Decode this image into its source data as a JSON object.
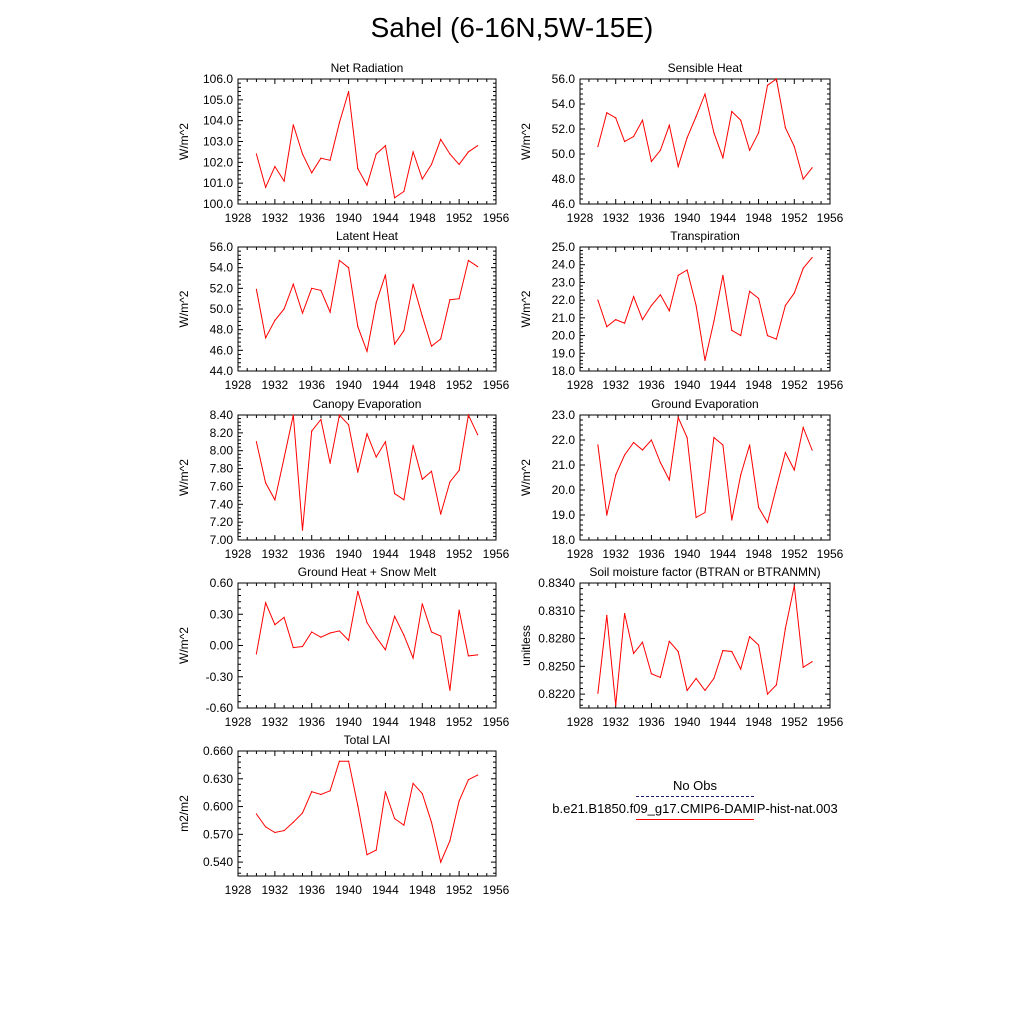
{
  "title": "Sahel (6-16N,5W-15E)",
  "colors": {
    "line": "#ff0000",
    "axis": "#000000",
    "obs_line": "#1a1a6e"
  },
  "legend": [
    {
      "label": "No Obs",
      "style": "dashed",
      "color": "#1a1a6e"
    },
    {
      "label": "b.e21.B1850.f09_g17.CMIP6-DAMIP-hist-nat.003",
      "style": "solid",
      "color": "#ff0000"
    }
  ],
  "chart_data": [
    {
      "type": "line",
      "title": "Net Radiation",
      "xlabel": "",
      "ylabel": "W/m^2",
      "xlim": [
        1928,
        1956
      ],
      "xticks": [
        "1928",
        "1932",
        "1936",
        "1940",
        "1944",
        "1948",
        "1952",
        "1956"
      ],
      "ylim": [
        100.0,
        106.0
      ],
      "yticks": [
        "100.0",
        "101.0",
        "102.0",
        "103.0",
        "104.0",
        "105.0",
        "106.0"
      ],
      "x": [
        1930,
        1931,
        1932,
        1933,
        1934,
        1935,
        1936,
        1937,
        1938,
        1939,
        1940,
        1941,
        1942,
        1943,
        1944,
        1945,
        1946,
        1947,
        1948,
        1949,
        1950,
        1951,
        1952,
        1953,
        1954
      ],
      "y": [
        102.4,
        100.8,
        101.8,
        101.1,
        103.8,
        102.4,
        101.5,
        102.2,
        102.1,
        103.9,
        105.4,
        101.7,
        100.9,
        102.4,
        102.8,
        100.3,
        100.6,
        102.5,
        101.2,
        101.9,
        103.1,
        102.4,
        101.9,
        102.5,
        102.8
      ]
    },
    {
      "type": "line",
      "title": "Sensible Heat",
      "xlabel": "",
      "ylabel": "W/m^2",
      "xlim": [
        1928,
        1956
      ],
      "xticks": [
        "1928",
        "1932",
        "1936",
        "1940",
        "1944",
        "1948",
        "1952",
        "1956"
      ],
      "ylim": [
        46.0,
        56.0
      ],
      "yticks": [
        "46.0",
        "48.0",
        "50.0",
        "52.0",
        "54.0",
        "56.0"
      ],
      "x": [
        1930,
        1931,
        1932,
        1933,
        1934,
        1935,
        1936,
        1937,
        1938,
        1939,
        1940,
        1941,
        1942,
        1943,
        1944,
        1945,
        1946,
        1947,
        1948,
        1949,
        1950,
        1951,
        1952,
        1953,
        1954
      ],
      "y": [
        50.6,
        53.3,
        52.9,
        51.0,
        51.4,
        52.7,
        49.4,
        50.3,
        52.3,
        49.0,
        51.3,
        53.0,
        54.8,
        51.7,
        49.7,
        53.4,
        52.7,
        50.3,
        51.7,
        55.5,
        56.0,
        52.1,
        50.6,
        48.0,
        48.9
      ]
    },
    {
      "type": "line",
      "title": "Latent Heat",
      "xlabel": "",
      "ylabel": "W/m^2",
      "xlim": [
        1928,
        1956
      ],
      "xticks": [
        "1928",
        "1932",
        "1936",
        "1940",
        "1944",
        "1948",
        "1952",
        "1956"
      ],
      "ylim": [
        44.0,
        56.0
      ],
      "yticks": [
        "44.0",
        "46.0",
        "48.0",
        "50.0",
        "52.0",
        "54.0",
        "56.0"
      ],
      "x": [
        1930,
        1931,
        1932,
        1933,
        1934,
        1935,
        1936,
        1937,
        1938,
        1939,
        1940,
        1941,
        1942,
        1943,
        1944,
        1945,
        1946,
        1947,
        1948,
        1949,
        1950,
        1951,
        1952,
        1953,
        1954
      ],
      "y": [
        51.9,
        47.2,
        48.9,
        50.0,
        52.4,
        49.6,
        52.0,
        51.8,
        49.7,
        54.7,
        54.0,
        48.3,
        45.9,
        50.6,
        53.3,
        46.6,
        47.9,
        52.4,
        49.3,
        46.4,
        47.1,
        50.9,
        51.0,
        54.7,
        54.1
      ]
    },
    {
      "type": "line",
      "title": "Transpiration",
      "xlabel": "",
      "ylabel": "W/m^2",
      "xlim": [
        1928,
        1956
      ],
      "xticks": [
        "1928",
        "1932",
        "1936",
        "1940",
        "1944",
        "1948",
        "1952",
        "1956"
      ],
      "ylim": [
        18.0,
        25.0
      ],
      "yticks": [
        "18.0",
        "19.0",
        "20.0",
        "21.0",
        "22.0",
        "23.0",
        "24.0",
        "25.0"
      ],
      "x": [
        1930,
        1931,
        1932,
        1933,
        1934,
        1935,
        1936,
        1937,
        1938,
        1939,
        1940,
        1941,
        1942,
        1943,
        1944,
        1945,
        1946,
        1947,
        1948,
        1949,
        1950,
        1951,
        1952,
        1953,
        1954
      ],
      "y": [
        22.0,
        20.5,
        20.9,
        20.7,
        22.2,
        20.9,
        21.7,
        22.3,
        21.4,
        23.4,
        23.7,
        21.7,
        18.6,
        20.8,
        23.4,
        20.3,
        20.0,
        22.5,
        22.1,
        20.0,
        19.8,
        21.7,
        22.4,
        23.8,
        24.4
      ]
    },
    {
      "type": "line",
      "title": "Canopy Evaporation",
      "xlabel": "",
      "ylabel": "W/m^2",
      "xlim": [
        1928,
        1956
      ],
      "xticks": [
        "1928",
        "1932",
        "1936",
        "1940",
        "1944",
        "1948",
        "1952",
        "1956"
      ],
      "ylim": [
        7.0,
        8.4
      ],
      "yticks": [
        "7.00",
        "7.20",
        "7.40",
        "7.60",
        "7.80",
        "8.00",
        "8.20",
        "8.40"
      ],
      "x": [
        1930,
        1931,
        1932,
        1933,
        1934,
        1935,
        1936,
        1937,
        1938,
        1939,
        1940,
        1941,
        1942,
        1943,
        1944,
        1945,
        1946,
        1947,
        1948,
        1949,
        1950,
        1951,
        1952,
        1953,
        1954
      ],
      "y": [
        8.1,
        7.64,
        7.45,
        7.92,
        8.4,
        7.11,
        8.22,
        8.35,
        7.86,
        8.4,
        8.29,
        7.76,
        8.19,
        7.93,
        8.1,
        7.52,
        7.45,
        8.06,
        7.68,
        7.77,
        7.29,
        7.65,
        7.78,
        8.4,
        8.18
      ]
    },
    {
      "type": "line",
      "title": "Ground Evaporation",
      "xlabel": "",
      "ylabel": "W/m^2",
      "xlim": [
        1928,
        1956
      ],
      "xticks": [
        "1928",
        "1932",
        "1936",
        "1940",
        "1944",
        "1948",
        "1952",
        "1956"
      ],
      "ylim": [
        18.0,
        23.0
      ],
      "yticks": [
        "18.0",
        "19.0",
        "20.0",
        "21.0",
        "22.0",
        "23.0"
      ],
      "x": [
        1930,
        1931,
        1932,
        1933,
        1934,
        1935,
        1936,
        1937,
        1938,
        1939,
        1940,
        1941,
        1942,
        1943,
        1944,
        1945,
        1946,
        1947,
        1948,
        1949,
        1950,
        1951,
        1952,
        1953,
        1954
      ],
      "y": [
        21.8,
        19.0,
        20.6,
        21.4,
        21.9,
        21.6,
        22.0,
        21.1,
        20.4,
        22.9,
        22.1,
        18.9,
        19.1,
        22.1,
        21.8,
        18.8,
        20.6,
        21.8,
        19.3,
        18.7,
        20.1,
        21.5,
        20.8,
        22.5,
        21.6
      ]
    },
    {
      "type": "line",
      "title": "Ground Heat + Snow Melt",
      "xlabel": "",
      "ylabel": "W/m^2",
      "xlim": [
        1928,
        1956
      ],
      "xticks": [
        "1928",
        "1932",
        "1936",
        "1940",
        "1944",
        "1948",
        "1952",
        "1956"
      ],
      "ylim": [
        -0.6,
        0.6
      ],
      "yticks": [
        "-0.60",
        "-0.30",
        "0.00",
        "0.30",
        "0.60"
      ],
      "x": [
        1930,
        1931,
        1932,
        1933,
        1934,
        1935,
        1936,
        1937,
        1938,
        1939,
        1940,
        1941,
        1942,
        1943,
        1944,
        1945,
        1946,
        1947,
        1948,
        1949,
        1950,
        1951,
        1952,
        1953,
        1954
      ],
      "y": [
        -0.08,
        0.41,
        0.2,
        0.27,
        -0.02,
        -0.01,
        0.13,
        0.08,
        0.12,
        0.14,
        0.05,
        0.52,
        0.22,
        0.08,
        -0.04,
        0.28,
        0.1,
        -0.12,
        0.4,
        0.13,
        0.09,
        -0.43,
        0.34,
        -0.1,
        -0.09
      ]
    },
    {
      "type": "line",
      "title": "Soil moisture factor (BTRAN or BTRANMN)",
      "xlabel": "",
      "ylabel": "unitless",
      "xlim": [
        1928,
        1956
      ],
      "xticks": [
        "1928",
        "1932",
        "1936",
        "1940",
        "1944",
        "1948",
        "1952",
        "1956"
      ],
      "ylim": [
        0.8205,
        0.834
      ],
      "yticks": [
        "0.8220",
        "0.8250",
        "0.8280",
        "0.8310",
        "0.8340"
      ],
      "x": [
        1930,
        1931,
        1932,
        1933,
        1934,
        1935,
        1936,
        1937,
        1938,
        1939,
        1940,
        1941,
        1942,
        1943,
        1944,
        1945,
        1946,
        1947,
        1948,
        1949,
        1950,
        1951,
        1952,
        1953,
        1954
      ],
      "y": [
        0.8221,
        0.8305,
        0.8208,
        0.8307,
        0.8264,
        0.8276,
        0.8242,
        0.8238,
        0.8277,
        0.8266,
        0.8224,
        0.8237,
        0.8224,
        0.8237,
        0.8267,
        0.8266,
        0.8247,
        0.8282,
        0.8273,
        0.822,
        0.823,
        0.8291,
        0.8337,
        0.8249,
        0.8255
      ]
    },
    {
      "type": "line",
      "title": "Total LAI",
      "xlabel": "",
      "ylabel": "m2/m2",
      "xlim": [
        1928,
        1956
      ],
      "xticks": [
        "1928",
        "1932",
        "1936",
        "1940",
        "1944",
        "1948",
        "1952",
        "1956"
      ],
      "ylim": [
        0.525,
        0.66
      ],
      "yticks": [
        "0.540",
        "0.570",
        "0.600",
        "0.630",
        "0.660"
      ],
      "x": [
        1930,
        1931,
        1932,
        1933,
        1934,
        1935,
        1936,
        1937,
        1938,
        1939,
        1940,
        1941,
        1942,
        1943,
        1944,
        1945,
        1946,
        1947,
        1948,
        1949,
        1950,
        1951,
        1952,
        1953,
        1954
      ],
      "y": [
        0.592,
        0.578,
        0.572,
        0.574,
        0.583,
        0.593,
        0.616,
        0.613,
        0.617,
        0.649,
        0.649,
        0.601,
        0.548,
        0.553,
        0.616,
        0.587,
        0.58,
        0.625,
        0.614,
        0.583,
        0.54,
        0.563,
        0.606,
        0.629,
        0.634
      ]
    }
  ]
}
